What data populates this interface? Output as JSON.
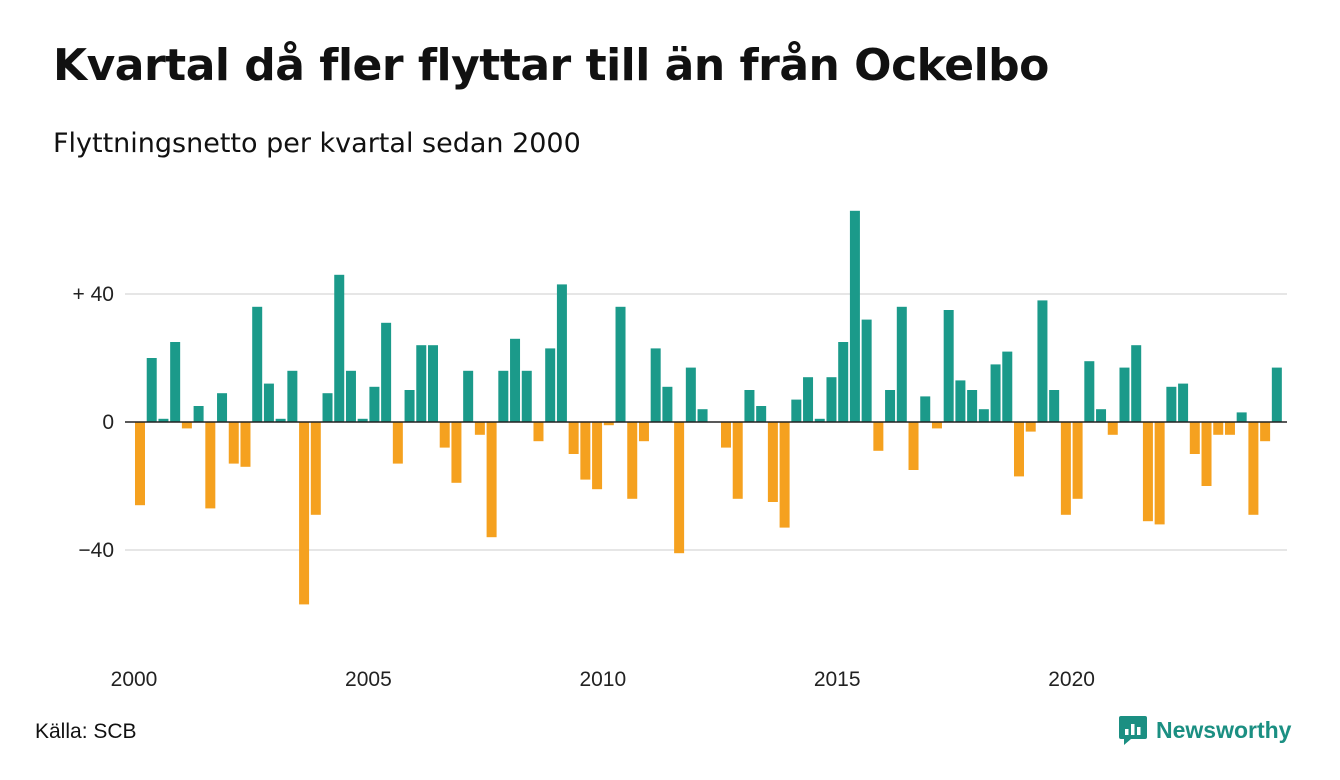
{
  "title": "Kvartal då fler flyttar till än från Ockelbo",
  "subtitle": "Flyttningsnetto per kvartal sedan 2000",
  "source": "Källa: SCB",
  "brand": "Newsworthy",
  "colors": {
    "positive": "#1b9a8a",
    "negative": "#f5a11f",
    "grid": "#dddddd",
    "zero_line": "#222222",
    "brand": "#1b8f82"
  },
  "icons": {
    "brand_logo": "newsworthy-logo-icon"
  },
  "chart_data": {
    "type": "bar",
    "title": "Kvartal då fler flyttar till än från Ockelbo",
    "subtitle": "Flyttningsnetto per kvartal sedan 2000",
    "xlabel": "",
    "ylabel": "",
    "grid": true,
    "legend": "none",
    "x_start": "2000Q1",
    "ylim": [
      -60,
      66
    ],
    "y_ticks": [
      {
        "value": 40,
        "label": "+ 40"
      },
      {
        "value": 0,
        "label": "0"
      },
      {
        "value": -40,
        "label": "−40"
      }
    ],
    "x_ticks": [
      {
        "index": 0,
        "label": "2000"
      },
      {
        "index": 20,
        "label": "2005"
      },
      {
        "index": 40,
        "label": "2010"
      },
      {
        "index": 60,
        "label": "2015"
      },
      {
        "index": 80,
        "label": "2020"
      }
    ],
    "values": [
      -26,
      20,
      1,
      25,
      -2,
      5,
      -27,
      9,
      -13,
      -14,
      36,
      12,
      1,
      16,
      -57,
      -29,
      9,
      46,
      16,
      1,
      11,
      31,
      -13,
      10,
      24,
      24,
      -8,
      -19,
      16,
      -4,
      -36,
      16,
      26,
      16,
      -6,
      23,
      43,
      -10,
      -18,
      -21,
      -1,
      36,
      -24,
      -6,
      23,
      11,
      -41,
      17,
      4,
      0,
      -8,
      -24,
      10,
      5,
      -25,
      -33,
      7,
      14,
      1,
      14,
      25,
      66,
      32,
      -9,
      10,
      36,
      -15,
      8,
      -2,
      35,
      13,
      10,
      4,
      18,
      22,
      -17,
      -3,
      38,
      10,
      -29,
      -24,
      19,
      4,
      -4,
      17,
      24,
      -31,
      -32,
      11,
      12,
      -10,
      -20,
      -4,
      -4,
      3,
      -29,
      -6,
      17
    ]
  }
}
